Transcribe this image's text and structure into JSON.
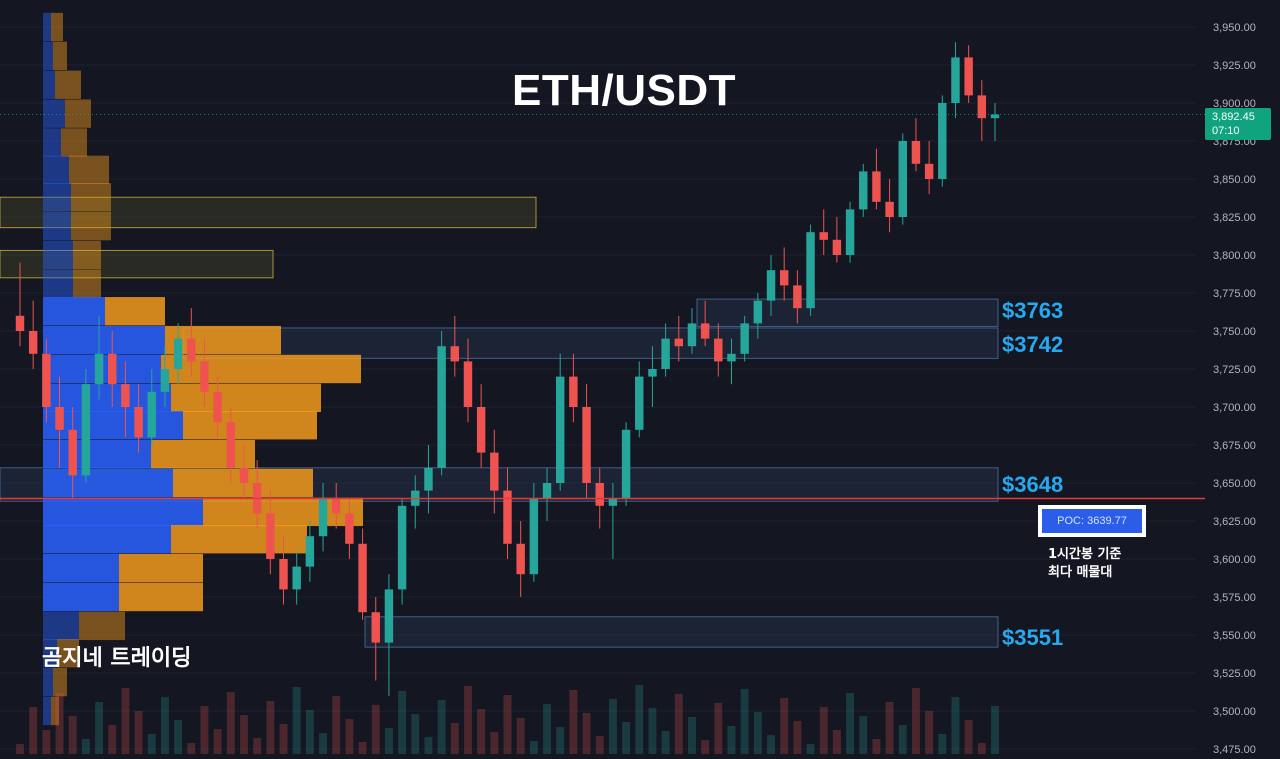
{
  "title": "ETH/USDT",
  "watermark": "곰지네 트레이딩",
  "current_price": {
    "value": "3,892.45",
    "timer": "07:10"
  },
  "poc": {
    "label": "POC: 3639.77",
    "note_line1": "1시간봉 기준",
    "note_line2": "최다 매물대"
  },
  "levels": [
    {
      "label": "$3763",
      "price": 3763
    },
    {
      "label": "$3742",
      "price": 3742
    },
    {
      "label": "$3648",
      "price": 3648
    },
    {
      "label": "$3551",
      "price": 3551
    }
  ],
  "colors": {
    "background": "#141722",
    "up": "#26a69a",
    "down": "#ef5350",
    "vp_blue": "#2962ff",
    "vp_orange": "#f29a1c",
    "level_text": "#26a9f0",
    "poc_line": "#e53935",
    "price_tag": "#10a37f"
  },
  "chart_data": {
    "type": "candlestick",
    "title": "ETH/USDT",
    "ylim": [
      3470,
      3970
    ],
    "y_ticks": [
      "3,475.00",
      "3,500.00",
      "3,525.00",
      "3,550.00",
      "3,575.00",
      "3,600.00",
      "3,625.00",
      "3,650.00",
      "3,675.00",
      "3,700.00",
      "3,725.00",
      "3,750.00",
      "3,775.00",
      "3,800.00",
      "3,825.00",
      "3,850.00",
      "3,875.00",
      "3,900.00",
      "3,925.00",
      "3,950.00"
    ],
    "ohlc": [
      [
        3760,
        3795,
        3740,
        3750
      ],
      [
        3750,
        3770,
        3725,
        3735
      ],
      [
        3735,
        3745,
        3690,
        3700
      ],
      [
        3700,
        3720,
        3660,
        3685
      ],
      [
        3685,
        3700,
        3640,
        3655
      ],
      [
        3655,
        3725,
        3650,
        3715
      ],
      [
        3715,
        3760,
        3705,
        3735
      ],
      [
        3735,
        3750,
        3700,
        3715
      ],
      [
        3715,
        3730,
        3680,
        3700
      ],
      [
        3700,
        3715,
        3670,
        3680
      ],
      [
        3680,
        3725,
        3675,
        3710
      ],
      [
        3710,
        3740,
        3700,
        3725
      ],
      [
        3725,
        3755,
        3715,
        3745
      ],
      [
        3745,
        3765,
        3720,
        3730
      ],
      [
        3730,
        3745,
        3700,
        3710
      ],
      [
        3710,
        3720,
        3680,
        3690
      ],
      [
        3690,
        3700,
        3650,
        3660
      ],
      [
        3660,
        3675,
        3640,
        3650
      ],
      [
        3650,
        3665,
        3620,
        3630
      ],
      [
        3630,
        3645,
        3590,
        3600
      ],
      [
        3600,
        3615,
        3570,
        3580
      ],
      [
        3580,
        3605,
        3570,
        3595
      ],
      [
        3595,
        3625,
        3585,
        3615
      ],
      [
        3615,
        3650,
        3605,
        3640
      ],
      [
        3640,
        3650,
        3620,
        3630
      ],
      [
        3630,
        3640,
        3600,
        3610
      ],
      [
        3610,
        3620,
        3560,
        3565
      ],
      [
        3565,
        3575,
        3520,
        3545
      ],
      [
        3545,
        3590,
        3510,
        3580
      ],
      [
        3580,
        3640,
        3570,
        3635
      ],
      [
        3635,
        3655,
        3620,
        3645
      ],
      [
        3645,
        3675,
        3630,
        3660
      ],
      [
        3660,
        3750,
        3655,
        3740
      ],
      [
        3740,
        3760,
        3720,
        3730
      ],
      [
        3730,
        3745,
        3690,
        3700
      ],
      [
        3700,
        3715,
        3660,
        3670
      ],
      [
        3670,
        3685,
        3630,
        3645
      ],
      [
        3645,
        3660,
        3600,
        3610
      ],
      [
        3610,
        3625,
        3575,
        3590
      ],
      [
        3590,
        3650,
        3585,
        3640
      ],
      [
        3640,
        3660,
        3625,
        3650
      ],
      [
        3650,
        3735,
        3645,
        3720
      ],
      [
        3720,
        3735,
        3690,
        3700
      ],
      [
        3700,
        3715,
        3640,
        3650
      ],
      [
        3650,
        3660,
        3620,
        3635
      ],
      [
        3635,
        3650,
        3600,
        3640
      ],
      [
        3640,
        3690,
        3635,
        3685
      ],
      [
        3685,
        3730,
        3680,
        3720
      ],
      [
        3720,
        3740,
        3700,
        3725
      ],
      [
        3725,
        3755,
        3720,
        3745
      ],
      [
        3745,
        3760,
        3730,
        3740
      ],
      [
        3740,
        3765,
        3735,
        3755
      ],
      [
        3755,
        3770,
        3740,
        3745
      ],
      [
        3745,
        3755,
        3720,
        3730
      ],
      [
        3730,
        3745,
        3715,
        3735
      ],
      [
        3735,
        3760,
        3730,
        3755
      ],
      [
        3755,
        3775,
        3745,
        3770
      ],
      [
        3770,
        3800,
        3760,
        3790
      ],
      [
        3790,
        3805,
        3770,
        3780
      ],
      [
        3780,
        3790,
        3755,
        3765
      ],
      [
        3765,
        3820,
        3760,
        3815
      ],
      [
        3815,
        3830,
        3800,
        3810
      ],
      [
        3810,
        3825,
        3795,
        3800
      ],
      [
        3800,
        3835,
        3795,
        3830
      ],
      [
        3830,
        3860,
        3825,
        3855
      ],
      [
        3855,
        3870,
        3830,
        3835
      ],
      [
        3835,
        3850,
        3815,
        3825
      ],
      [
        3825,
        3880,
        3820,
        3875
      ],
      [
        3875,
        3890,
        3855,
        3860
      ],
      [
        3860,
        3875,
        3840,
        3850
      ],
      [
        3850,
        3905,
        3845,
        3900
      ],
      [
        3900,
        3940,
        3890,
        3930
      ],
      [
        3930,
        3938,
        3900,
        3905
      ],
      [
        3905,
        3915,
        3875,
        3890
      ],
      [
        3890,
        3900,
        3875,
        3892.45
      ]
    ],
    "volume_profile": [
      {
        "price": 3950,
        "buy": 8,
        "sell": 12
      },
      {
        "price": 3931,
        "buy": 10,
        "sell": 14
      },
      {
        "price": 3912,
        "buy": 12,
        "sell": 26
      },
      {
        "price": 3893,
        "buy": 22,
        "sell": 26
      },
      {
        "price": 3874,
        "buy": 18,
        "sell": 26
      },
      {
        "price": 3856,
        "buy": 26,
        "sell": 40
      },
      {
        "price": 3838,
        "buy": 28,
        "sell": 40
      },
      {
        "price": 3819,
        "buy": 28,
        "sell": 40
      },
      {
        "price": 3800,
        "buy": 30,
        "sell": 28
      },
      {
        "price": 3781,
        "buy": 30,
        "sell": 28
      },
      {
        "price": 3763,
        "buy": 62,
        "sell": 60
      },
      {
        "price": 3744,
        "buy": 122,
        "sell": 116
      },
      {
        "price": 3725,
        "buy": 118,
        "sell": 200
      },
      {
        "price": 3706,
        "buy": 128,
        "sell": 150
      },
      {
        "price": 3688,
        "buy": 140,
        "sell": 134
      },
      {
        "price": 3669,
        "buy": 108,
        "sell": 104
      },
      {
        "price": 3650,
        "buy": 130,
        "sell": 140
      },
      {
        "price": 3631,
        "buy": 160,
        "sell": 160
      },
      {
        "price": 3613,
        "buy": 128,
        "sell": 136
      },
      {
        "price": 3594,
        "buy": 76,
        "sell": 84
      },
      {
        "price": 3575,
        "buy": 76,
        "sell": 84
      },
      {
        "price": 3556,
        "buy": 36,
        "sell": 46
      },
      {
        "price": 3538,
        "buy": 14,
        "sell": 22
      },
      {
        "price": 3519,
        "buy": 10,
        "sell": 14
      },
      {
        "price": 3500,
        "buy": 8,
        "sell": 8
      }
    ],
    "zones": [
      {
        "kind": "resistance",
        "from": 3818,
        "to": 3838,
        "color": "#c9b13a"
      },
      {
        "kind": "resistance",
        "from": 3785,
        "to": 3803,
        "color": "#c9b13a"
      },
      {
        "kind": "support",
        "from": 3732,
        "to": 3752,
        "color": "#4a6fa5"
      },
      {
        "kind": "support",
        "from": 3753,
        "to": 3771,
        "color": "#4a6fa5"
      },
      {
        "kind": "support",
        "from": 3638,
        "to": 3660,
        "color": "#4a6fa5"
      },
      {
        "kind": "support",
        "from": 3542,
        "to": 3562,
        "color": "#4a6fa5"
      }
    ],
    "poc_price": 3639.77
  }
}
